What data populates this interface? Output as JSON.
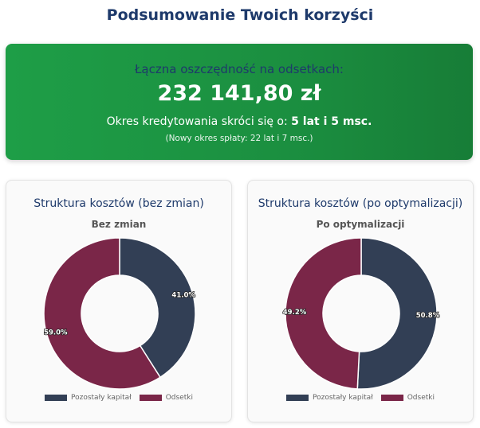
{
  "page_title": "Podsumowanie Twoich korzyści",
  "summary": {
    "savings_label": "Łączna oszczędność na odsetkach:",
    "savings_amount": "232 141,80 zł",
    "period_prefix": "Okres kredytowania skróci się o: ",
    "period_value": "5 lat i 5 msc.",
    "new_period_note": "(Nowy okres spłaty: 22 lat i 7 msc.)",
    "accent_color": "#1e9e47"
  },
  "colors": {
    "capital": "#323f55",
    "interest": "#7a2648"
  },
  "chart_data": [
    {
      "type": "pie",
      "variant": "doughnut",
      "card_title": "Struktura kosztów (bez zmian)",
      "title": "Bez zmian",
      "categories": [
        "Pozostały kapitał",
        "Odsetki"
      ],
      "values": [
        41.0,
        59.0
      ],
      "labels": [
        "41.0%",
        "59.0%"
      ],
      "legend": "bottom"
    },
    {
      "type": "pie",
      "variant": "doughnut",
      "card_title": "Struktura kosztów (po optymalizacji)",
      "title": "Po optymalizacji",
      "categories": [
        "Pozostały kapitał",
        "Odsetki"
      ],
      "values": [
        50.8,
        49.2
      ],
      "labels": [
        "50.8%",
        "49.2%"
      ],
      "legend": "bottom"
    }
  ]
}
